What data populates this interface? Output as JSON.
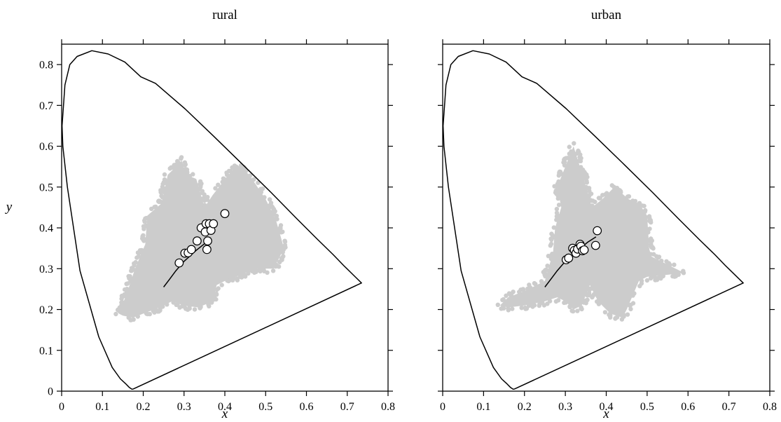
{
  "chart_data": [
    {
      "type": "scatter",
      "title": "rural",
      "xlabel": "x",
      "ylabel": "y",
      "xlim": [
        0,
        0.8
      ],
      "ylim": [
        0,
        0.85
      ],
      "xticks": [
        0,
        0.1,
        0.2,
        0.3,
        0.4,
        0.5,
        0.6,
        0.7,
        0.8
      ],
      "yticks": [
        0,
        0.1,
        0.2,
        0.3,
        0.4,
        0.5,
        0.6,
        0.7,
        0.8
      ],
      "xtick_labels": [
        "0",
        "0.1",
        "0.2",
        "0.3",
        "0.4",
        "0.5",
        "0.6",
        "0.7",
        "0.8"
      ],
      "ytick_labels": [
        "0",
        "0.1",
        "0.2",
        "0.3",
        "0.4",
        "0.5",
        "0.6",
        "0.7",
        "0.8"
      ],
      "grid": false,
      "spectral_locus": [
        [
          0.175,
          0.005
        ],
        [
          0.172,
          0.005
        ],
        [
          0.166,
          0.009
        ],
        [
          0.156,
          0.019
        ],
        [
          0.144,
          0.03
        ],
        [
          0.124,
          0.058
        ],
        [
          0.091,
          0.133
        ],
        [
          0.045,
          0.295
        ],
        [
          0.014,
          0.5
        ],
        [
          0.003,
          0.6
        ],
        [
          0.001,
          0.65
        ],
        [
          0.008,
          0.75
        ],
        [
          0.02,
          0.8
        ],
        [
          0.038,
          0.82
        ],
        [
          0.074,
          0.834
        ],
        [
          0.114,
          0.826
        ],
        [
          0.155,
          0.806
        ],
        [
          0.194,
          0.77
        ],
        [
          0.23,
          0.754
        ],
        [
          0.302,
          0.692
        ],
        [
          0.373,
          0.624
        ],
        [
          0.444,
          0.555
        ],
        [
          0.513,
          0.487
        ],
        [
          0.575,
          0.424
        ],
        [
          0.627,
          0.372
        ],
        [
          0.666,
          0.334
        ],
        [
          0.691,
          0.308
        ],
        [
          0.735,
          0.265
        ],
        [
          0.175,
          0.005
        ]
      ],
      "planckian_locus": [
        [
          0.25,
          0.255
        ],
        [
          0.265,
          0.275
        ],
        [
          0.28,
          0.295
        ],
        [
          0.3,
          0.318
        ],
        [
          0.33,
          0.345
        ],
        [
          0.355,
          0.365
        ]
      ],
      "cloud_color": "#cccccc",
      "cloud_region": [
        [
          0.14,
          0.19
        ],
        [
          0.16,
          0.24
        ],
        [
          0.18,
          0.3
        ],
        [
          0.205,
          0.36
        ],
        [
          0.21,
          0.43
        ],
        [
          0.245,
          0.46
        ],
        [
          0.26,
          0.53
        ],
        [
          0.295,
          0.565
        ],
        [
          0.305,
          0.53
        ],
        [
          0.33,
          0.52
        ],
        [
          0.35,
          0.45
        ],
        [
          0.37,
          0.48
        ],
        [
          0.405,
          0.525
        ],
        [
          0.43,
          0.555
        ],
        [
          0.46,
          0.53
        ],
        [
          0.5,
          0.47
        ],
        [
          0.525,
          0.42
        ],
        [
          0.545,
          0.35
        ],
        [
          0.52,
          0.3
        ],
        [
          0.47,
          0.3
        ],
        [
          0.44,
          0.285
        ],
        [
          0.4,
          0.27
        ],
        [
          0.38,
          0.26
        ],
        [
          0.37,
          0.22
        ],
        [
          0.335,
          0.205
        ],
        [
          0.3,
          0.21
        ],
        [
          0.27,
          0.22
        ],
        [
          0.24,
          0.205
        ],
        [
          0.2,
          0.19
        ],
        [
          0.175,
          0.18
        ],
        [
          0.15,
          0.185
        ]
      ],
      "points": [
        {
          "x": 0.288,
          "y": 0.314
        },
        {
          "x": 0.302,
          "y": 0.338
        },
        {
          "x": 0.31,
          "y": 0.339
        },
        {
          "x": 0.318,
          "y": 0.347
        },
        {
          "x": 0.332,
          "y": 0.368
        },
        {
          "x": 0.342,
          "y": 0.4
        },
        {
          "x": 0.352,
          "y": 0.39
        },
        {
          "x": 0.354,
          "y": 0.41
        },
        {
          "x": 0.356,
          "y": 0.347
        },
        {
          "x": 0.358,
          "y": 0.368
        },
        {
          "x": 0.362,
          "y": 0.41
        },
        {
          "x": 0.366,
          "y": 0.394
        },
        {
          "x": 0.372,
          "y": 0.41
        },
        {
          "x": 0.4,
          "y": 0.435
        }
      ]
    },
    {
      "type": "scatter",
      "title": "urban",
      "xlabel": "x",
      "ylabel": "",
      "xlim": [
        0,
        0.8
      ],
      "ylim": [
        0,
        0.85
      ],
      "xticks": [
        0,
        0.1,
        0.2,
        0.3,
        0.4,
        0.5,
        0.6,
        0.7,
        0.8
      ],
      "yticks": [
        0,
        0.1,
        0.2,
        0.3,
        0.4,
        0.5,
        0.6,
        0.7,
        0.8
      ],
      "xtick_labels": [
        "0",
        "0.1",
        "0.2",
        "0.3",
        "0.4",
        "0.5",
        "0.6",
        "0.7",
        "0.8"
      ],
      "ytick_labels": [],
      "grid": false,
      "spectral_locus": [
        [
          0.175,
          0.005
        ],
        [
          0.172,
          0.005
        ],
        [
          0.166,
          0.009
        ],
        [
          0.156,
          0.019
        ],
        [
          0.144,
          0.03
        ],
        [
          0.124,
          0.058
        ],
        [
          0.091,
          0.133
        ],
        [
          0.045,
          0.295
        ],
        [
          0.014,
          0.5
        ],
        [
          0.003,
          0.6
        ],
        [
          0.001,
          0.65
        ],
        [
          0.008,
          0.75
        ],
        [
          0.02,
          0.8
        ],
        [
          0.038,
          0.82
        ],
        [
          0.074,
          0.834
        ],
        [
          0.114,
          0.826
        ],
        [
          0.155,
          0.806
        ],
        [
          0.194,
          0.77
        ],
        [
          0.23,
          0.754
        ],
        [
          0.302,
          0.692
        ],
        [
          0.373,
          0.624
        ],
        [
          0.444,
          0.555
        ],
        [
          0.513,
          0.487
        ],
        [
          0.575,
          0.424
        ],
        [
          0.627,
          0.372
        ],
        [
          0.666,
          0.334
        ],
        [
          0.691,
          0.308
        ],
        [
          0.735,
          0.265
        ],
        [
          0.175,
          0.005
        ]
      ],
      "planckian_locus": [
        [
          0.25,
          0.255
        ],
        [
          0.265,
          0.275
        ],
        [
          0.28,
          0.295
        ],
        [
          0.3,
          0.318
        ],
        [
          0.33,
          0.345
        ],
        [
          0.355,
          0.365
        ],
        [
          0.375,
          0.378
        ]
      ],
      "cloud_color": "#cccccc",
      "cloud_region": [
        [
          0.14,
          0.21
        ],
        [
          0.16,
          0.23
        ],
        [
          0.2,
          0.245
        ],
        [
          0.25,
          0.27
        ],
        [
          0.27,
          0.34
        ],
        [
          0.275,
          0.4
        ],
        [
          0.29,
          0.45
        ],
        [
          0.28,
          0.5
        ],
        [
          0.3,
          0.55
        ],
        [
          0.32,
          0.6
        ],
        [
          0.345,
          0.52
        ],
        [
          0.365,
          0.45
        ],
        [
          0.39,
          0.47
        ],
        [
          0.42,
          0.5
        ],
        [
          0.455,
          0.47
        ],
        [
          0.48,
          0.46
        ],
        [
          0.5,
          0.43
        ],
        [
          0.505,
          0.35
        ],
        [
          0.51,
          0.33
        ],
        [
          0.55,
          0.31
        ],
        [
          0.59,
          0.29
        ],
        [
          0.55,
          0.285
        ],
        [
          0.5,
          0.28
        ],
        [
          0.48,
          0.27
        ],
        [
          0.45,
          0.2
        ],
        [
          0.44,
          0.18
        ],
        [
          0.41,
          0.19
        ],
        [
          0.38,
          0.22
        ],
        [
          0.36,
          0.26
        ],
        [
          0.34,
          0.21
        ],
        [
          0.32,
          0.2
        ],
        [
          0.3,
          0.22
        ],
        [
          0.28,
          0.23
        ],
        [
          0.25,
          0.22
        ],
        [
          0.2,
          0.21
        ],
        [
          0.16,
          0.205
        ]
      ],
      "points": [
        {
          "x": 0.302,
          "y": 0.322
        },
        {
          "x": 0.308,
          "y": 0.326
        },
        {
          "x": 0.318,
          "y": 0.35
        },
        {
          "x": 0.322,
          "y": 0.345
        },
        {
          "x": 0.326,
          "y": 0.338
        },
        {
          "x": 0.33,
          "y": 0.348
        },
        {
          "x": 0.336,
          "y": 0.36
        },
        {
          "x": 0.338,
          "y": 0.355
        },
        {
          "x": 0.342,
          "y": 0.344
        },
        {
          "x": 0.346,
          "y": 0.346
        },
        {
          "x": 0.374,
          "y": 0.357
        },
        {
          "x": 0.378,
          "y": 0.393
        }
      ]
    }
  ]
}
